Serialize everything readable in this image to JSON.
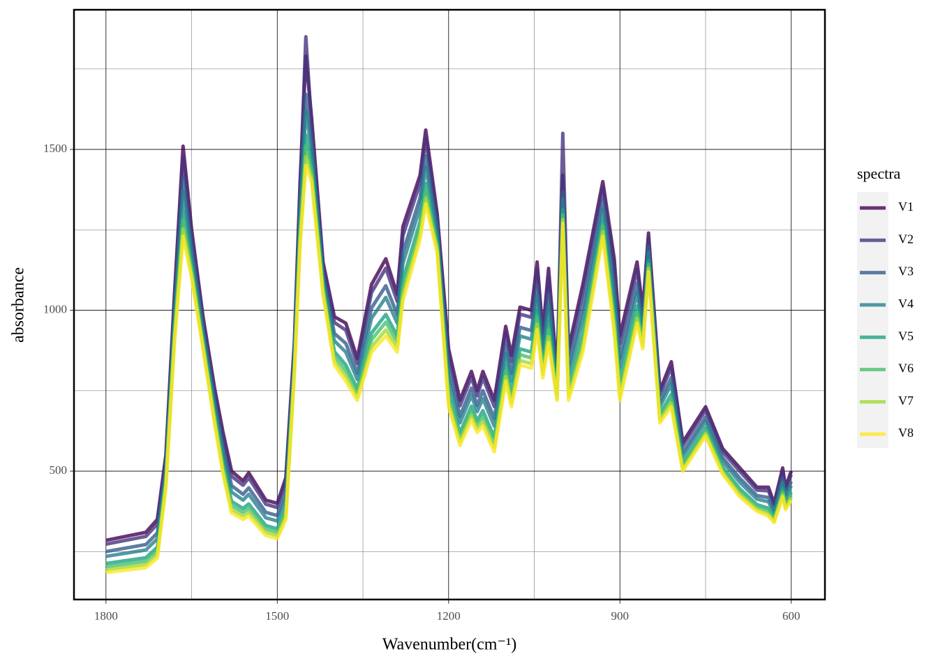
{
  "chart_data": {
    "type": "line",
    "xlabel": "Wavenumber(cm⁻¹)",
    "ylabel": "absorbance",
    "legend_title": "spectra",
    "xlim": [
      1856,
      541
    ],
    "ylim": [
      101,
      1934
    ],
    "xticks": [
      1800,
      1500,
      1200,
      900,
      600
    ],
    "yticks": [
      500,
      1000,
      1500
    ],
    "grid": true,
    "legend": "right",
    "opacity": 0.8,
    "x": [
      1800,
      1730,
      1710,
      1695,
      1680,
      1665,
      1650,
      1630,
      1610,
      1595,
      1580,
      1560,
      1550,
      1520,
      1500,
      1485,
      1470,
      1460,
      1450,
      1440,
      1420,
      1400,
      1380,
      1360,
      1335,
      1310,
      1290,
      1280,
      1250,
      1240,
      1220,
      1200,
      1180,
      1160,
      1150,
      1140,
      1120,
      1100,
      1090,
      1075,
      1055,
      1045,
      1035,
      1025,
      1010,
      1000,
      990,
      965,
      930,
      910,
      900,
      870,
      860,
      850,
      830,
      810,
      790,
      750,
      720,
      690,
      660,
      640,
      630,
      615,
      610,
      600
    ],
    "series": [
      {
        "name": "V1",
        "color": "#440154",
        "values": [
          285,
          310,
          350,
          550,
          1050,
          1510,
          1250,
          980,
          760,
          620,
          500,
          470,
          495,
          410,
          400,
          480,
          900,
          1400,
          1790,
          1600,
          1150,
          980,
          960,
          850,
          1080,
          1160,
          1050,
          1260,
          1420,
          1560,
          1300,
          880,
          720,
          810,
          750,
          810,
          720,
          950,
          860,
          1010,
          1000,
          1150,
          930,
          1130,
          800,
          1420,
          880,
          1080,
          1400,
          1160,
          920,
          1150,
          1000,
          1240,
          750,
          840,
          590,
          700,
          570,
          510,
          450,
          450,
          400,
          510,
          450,
          500
        ]
      },
      {
        "name": "V2",
        "color": "#46337E",
        "values": [
          273,
          297,
          336,
          538,
          1032,
          1476,
          1232,
          968,
          747,
          604,
          484,
          456,
          479,
          397,
          387,
          464,
          888,
          1376,
          1850,
          1576,
          1138,
          962,
          938,
          834,
          1055,
          1131,
          1028,
          1232,
          1396,
          1532,
          1286,
          858,
          703,
          792,
          734,
          790,
          701,
          930,
          841,
          988,
          978,
          1125,
          913,
          1102,
          790,
          1550,
          861,
          1055,
          1380,
          1132,
          896,
          1127,
          986,
          1226,
          738,
          823,
          579,
          689,
          560,
          499,
          441,
          439,
          393,
          499,
          442,
          489
        ]
      },
      {
        "name": "V3",
        "color": "#365C8D",
        "values": [
          250,
          272,
          308,
          515,
          998,
          1412,
          1198,
          945,
          722,
          575,
          455,
          428,
          448,
          372,
          362,
          435,
          865,
          1330,
          1671,
          1530,
          1115,
          928,
          897,
          805,
          1007,
          1076,
          987,
          1180,
          1350,
          1480,
          1258,
          817,
          671,
          758,
          705,
          750,
          664,
          891,
          804,
          947,
          937,
          1077,
          881,
          1050,
          772,
          1368,
          824,
          1007,
          1341,
          1080,
          850,
          1084,
          958,
          1198,
          715,
          791,
          558,
          668,
          542,
          478,
          424,
          418,
          379,
          478,
          426,
          468
        ]
      },
      {
        "name": "V4",
        "color": "#277F8E",
        "values": [
          235,
          255,
          290,
          500,
          975,
          1370,
          1175,
          930,
          705,
          555,
          435,
          410,
          428,
          355,
          345,
          415,
          850,
          1300,
          1620,
          1500,
          1100,
          905,
          870,
          785,
          975,
          1040,
          960,
          1145,
          1320,
          1445,
          1240,
          790,
          650,
          735,
          685,
          725,
          640,
          865,
          780,
          920,
          910,
          1045,
          860,
          1015,
          760,
          1345,
          800,
          975,
          1315,
          1045,
          820,
          1055,
          940,
          1180,
          700,
          770,
          545,
          655,
          530,
          465,
          413,
          405,
          370,
          465,
          415,
          455
        ]
      },
      {
        "name": "V5",
        "color": "#1FA187",
        "values": [
          213,
          231,
          264,
          478,
          942,
          1308,
          1142,
          908,
          681,
          526,
          406,
          384,
          398,
          331,
          321,
          386,
          828,
          1256,
          1545,
          1456,
          1078,
          872,
          830,
          756,
          929,
          987,
          920,
          1094,
          1276,
          1394,
          1214,
          750,
          619,
          702,
          656,
          688,
          605,
          828,
          745,
          880,
          870,
          999,
          829,
          964,
          742,
          1312,
          765,
          929,
          1278,
          994,
          776,
          1013,
          914,
          1154,
          678,
          739,
          525,
          635,
          512,
          445,
          396,
          385,
          357,
          445,
          400,
          435
        ]
      },
      {
        "name": "V6",
        "color": "#4AC16D",
        "values": [
          203,
          220,
          252,
          468,
          927,
          1280,
          1127,
          898,
          670,
          513,
          393,
          372,
          384,
          320,
          310,
          373,
          818,
          1236,
          1511,
          1436,
          1068,
          857,
          812,
          743,
          908,
          963,
          902,
          1071,
          1256,
          1371,
          1202,
          732,
          605,
          687,
          643,
          671,
          589,
          811,
          729,
          862,
          852,
          978,
          815,
          941,
          734,
          1297,
          749,
          908,
          1261,
          971,
          756,
          994,
          902,
          1142,
          668,
          725,
          516,
          626,
          504,
          436,
          389,
          376,
          351,
          436,
          393,
          426
        ]
      },
      {
        "name": "V7",
        "color": "#A0DA39",
        "values": [
          193,
          209,
          240,
          458,
          912,
          1252,
          1112,
          888,
          659,
          500,
          380,
          360,
          371,
          309,
          299,
          360,
          808,
          1216,
          1477,
          1416,
          1058,
          842,
          794,
          730,
          887,
          939,
          884,
          1048,
          1236,
          1348,
          1190,
          714,
          591,
          672,
          630,
          654,
          573,
          794,
          713,
          844,
          834,
          957,
          801,
          918,
          726,
          1282,
          733,
          887,
          1244,
          948,
          736,
          975,
          890,
          1130,
          658,
          711,
          507,
          617,
          496,
          427,
          381,
          367,
          345,
          427,
          386,
          417
        ]
      },
      {
        "name": "V8",
        "color": "#FDE725",
        "values": [
          185,
          200,
          230,
          450,
          900,
          1230,
          1100,
          880,
          650,
          490,
          370,
          350,
          360,
          300,
          290,
          350,
          800,
          1200,
          1450,
          1400,
          1050,
          830,
          780,
          720,
          870,
          920,
          870,
          1030,
          1220,
          1330,
          1180,
          700,
          580,
          660,
          620,
          640,
          560,
          780,
          700,
          830,
          820,
          940,
          790,
          900,
          720,
          1270,
          720,
          870,
          1230,
          930,
          720,
          960,
          880,
          1120,
          650,
          700,
          500,
          610,
          490,
          420,
          375,
          360,
          340,
          420,
          380,
          410
        ]
      }
    ]
  }
}
